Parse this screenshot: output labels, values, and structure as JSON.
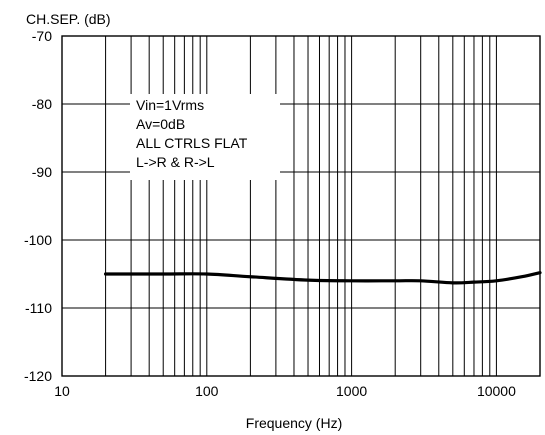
{
  "chart_data": {
    "type": "line",
    "title": "",
    "ylabel": "CH.SEP. (dB)",
    "xlabel": "Frequency (Hz)",
    "x_scale": "log",
    "xlim": [
      10,
      20000
    ],
    "ylim": [
      -120,
      -70
    ],
    "x_ticks": [
      10,
      100,
      1000,
      10000
    ],
    "x_tick_labels": [
      "10",
      "100",
      "1000",
      "10000"
    ],
    "y_ticks": [
      -70,
      -80,
      -90,
      -100,
      -110,
      -120
    ],
    "y_tick_labels": [
      "-70",
      "-80",
      "-90",
      "-100",
      "-110",
      "-120"
    ],
    "grid": true,
    "annotation": [
      "Vin=1Vrms",
      "Av=0dB",
      "ALL CTRLS FLAT",
      "L->R & R->L"
    ],
    "series": [
      {
        "x": [
          20,
          50,
          100,
          200,
          500,
          1000,
          2000,
          3000,
          5000,
          7000,
          10000,
          15000,
          20000
        ],
        "y": [
          -105,
          -105,
          -105,
          -105.4,
          -105.9,
          -106,
          -106,
          -106,
          -106.3,
          -106.2,
          -106,
          -105.4,
          -104.8
        ]
      }
    ],
    "colors": {
      "line": "#000000",
      "grid": "#000000",
      "background": "#ffffff"
    }
  }
}
